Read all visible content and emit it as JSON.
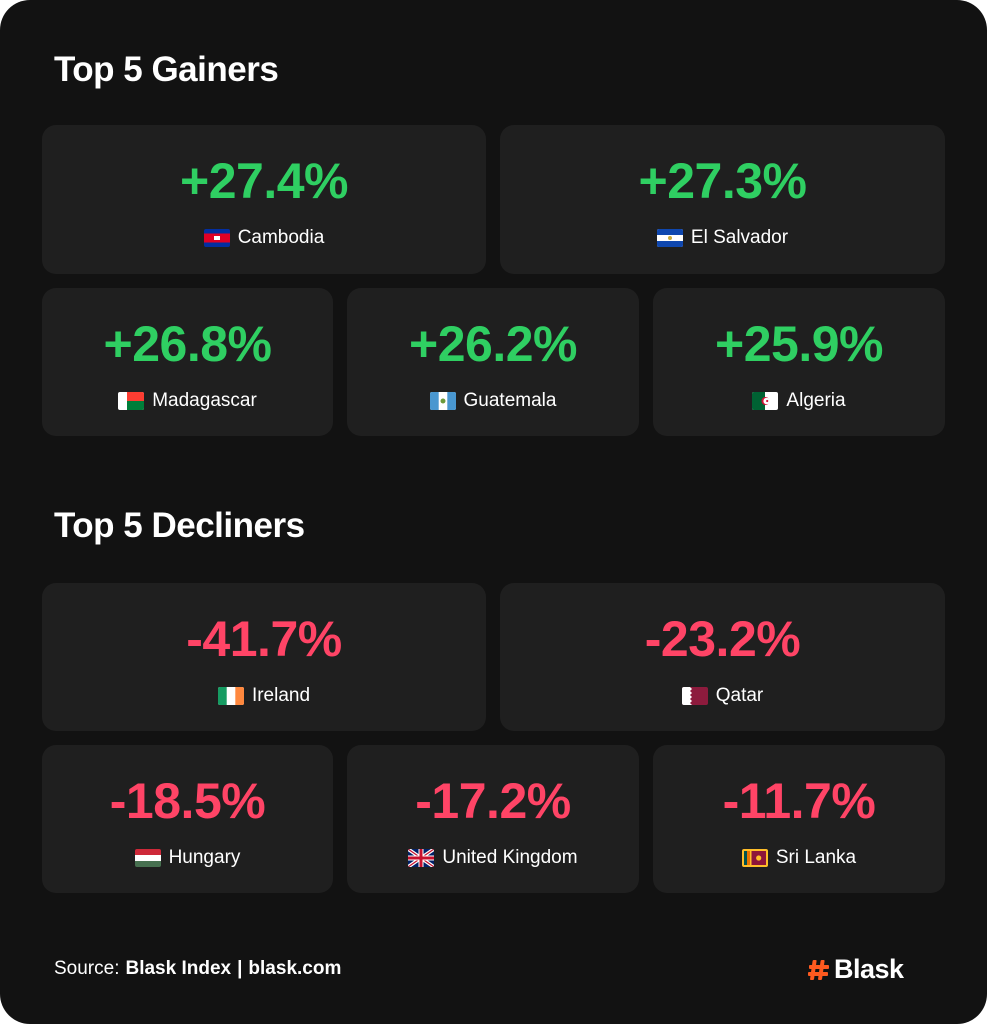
{
  "colors": {
    "background": "#121212",
    "tile": "#1f1f1f",
    "gain": "#2fcf62",
    "loss": "#ff4466",
    "brand_accent": "#ff5a1f"
  },
  "gainers": {
    "title": "Top 5 Gainers",
    "items": [
      {
        "value": "+27.4%",
        "country": "Cambodia",
        "flag_icon": "cambodia-flag-icon"
      },
      {
        "value": "+27.3%",
        "country": "El Salvador",
        "flag_icon": "el-salvador-flag-icon"
      },
      {
        "value": "+26.8%",
        "country": "Madagascar",
        "flag_icon": "madagascar-flag-icon"
      },
      {
        "value": "+26.2%",
        "country": "Guatemala",
        "flag_icon": "guatemala-flag-icon"
      },
      {
        "value": "+25.9%",
        "country": "Algeria",
        "flag_icon": "algeria-flag-icon"
      }
    ]
  },
  "decliners": {
    "title": "Top 5 Decliners",
    "items": [
      {
        "value": "-41.7%",
        "country": "Ireland",
        "flag_icon": "ireland-flag-icon"
      },
      {
        "value": "-23.2%",
        "country": "Qatar",
        "flag_icon": "qatar-flag-icon"
      },
      {
        "value": "-18.5%",
        "country": "Hungary",
        "flag_icon": "hungary-flag-icon"
      },
      {
        "value": "-17.2%",
        "country": "United Kingdom",
        "flag_icon": "united-kingdom-flag-icon"
      },
      {
        "value": "-11.7%",
        "country": "Sri Lanka",
        "flag_icon": "sri-lanka-flag-icon"
      }
    ]
  },
  "footer": {
    "source_label": "Source:",
    "source_name": "Blask Index",
    "separator": "|",
    "source_url": "blask.com",
    "brand": "Blask",
    "brand_icon": "hash-icon"
  }
}
